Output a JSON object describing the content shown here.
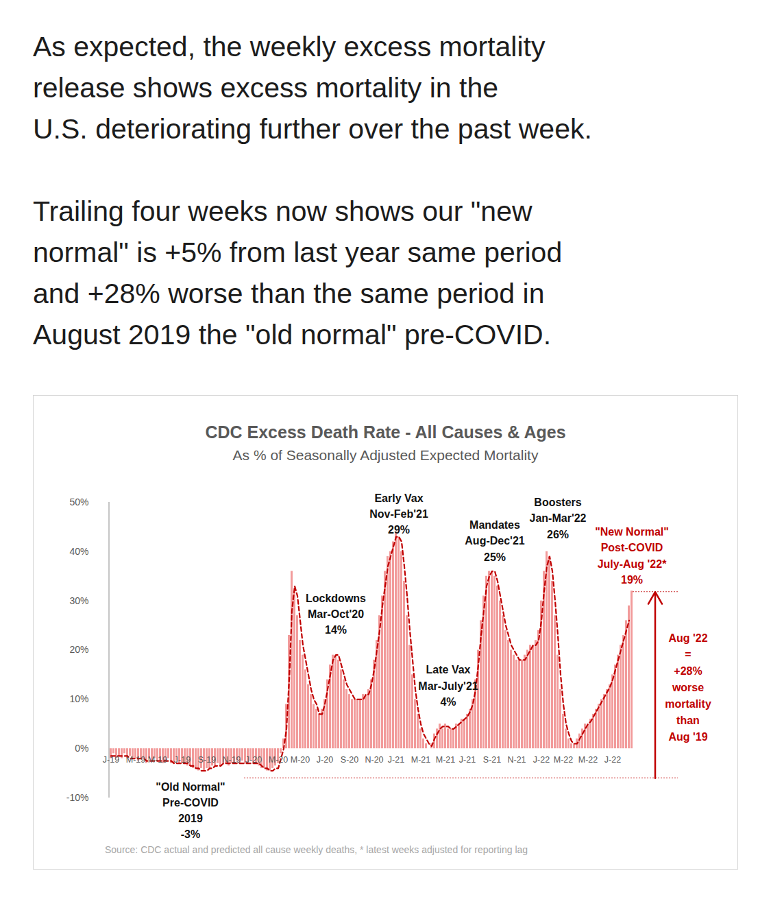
{
  "header": {
    "paragraphs": [
      [
        "As expected, the weekly excess mortality",
        "release shows excess mortality in the",
        "U.S. deteriorating further over the past week."
      ],
      [
        "Trailing four weeks now shows our \"new",
        "normal\" is +5% from last year same period",
        "and +28% worse than the same period in",
        "August 2019 the \"old normal\" pre-COVID."
      ]
    ]
  },
  "chart_data": {
    "type": "bar",
    "title": "CDC Excess Death Rate - All Causes & Ages",
    "subtitle": "As % of Seasonally Adjusted Expected Mortality",
    "source": "Source: CDC actual and predicted all cause weekly deaths, * latest weeks adjusted for reporting lag",
    "categories": [
      "J-19",
      null,
      null,
      null,
      null,
      null,
      null,
      null,
      null,
      "M-19",
      null,
      null,
      null,
      null,
      null,
      null,
      null,
      "M-19",
      null,
      null,
      null,
      null,
      null,
      null,
      null,
      null,
      "J-19",
      null,
      null,
      null,
      null,
      null,
      null,
      null,
      null,
      "S-19",
      null,
      null,
      null,
      null,
      null,
      null,
      null,
      null,
      "N-19",
      null,
      null,
      null,
      null,
      null,
      null,
      null,
      "J-20",
      null,
      null,
      null,
      null,
      null,
      null,
      null,
      null,
      "M-20",
      null,
      null,
      null,
      null,
      null,
      null,
      null,
      "M-20",
      null,
      null,
      null,
      null,
      null,
      null,
      null,
      null,
      "J-20",
      null,
      null,
      null,
      null,
      null,
      null,
      null,
      null,
      "S-20",
      null,
      null,
      null,
      null,
      null,
      null,
      null,
      null,
      "N-20",
      null,
      null,
      null,
      null,
      null,
      null,
      null,
      "J-21",
      null,
      null,
      null,
      null,
      null,
      null,
      null,
      null,
      "M-21",
      null,
      null,
      null,
      null,
      null,
      null,
      null,
      null,
      "M-21",
      null,
      null,
      null,
      null,
      null,
      null,
      null,
      "J-21",
      null,
      null,
      null,
      null,
      null,
      null,
      null,
      null,
      "S-21",
      null,
      null,
      null,
      null,
      null,
      null,
      null,
      null,
      "N-21",
      null,
      null,
      null,
      null,
      null,
      null,
      null,
      null,
      "J-22",
      null,
      null,
      null,
      null,
      null,
      null,
      null,
      "M-22",
      null,
      null,
      null,
      null,
      null,
      null,
      null,
      null,
      "M-22",
      null,
      null,
      null,
      null,
      null,
      null,
      null,
      null,
      "J-22",
      null,
      null,
      null,
      null,
      null,
      null,
      null
    ],
    "series": [
      {
        "type": "bar",
        "color": "#f29b9b",
        "values": [
          -2,
          -1,
          -2,
          -1.5,
          -2,
          -1,
          -2,
          -1.5,
          -2,
          -2,
          -2.5,
          -2,
          -2,
          -3,
          -2,
          -2.5,
          -2,
          -2.5,
          -2.5,
          -3,
          -2.5,
          -2,
          -3,
          -3,
          -2.5,
          -3,
          -3,
          -3,
          -3.5,
          -3.5,
          -4,
          -4,
          -4.5,
          -4,
          -4.5,
          -4,
          -4,
          -3.5,
          -3.5,
          -3,
          -3.5,
          -3,
          -3,
          -3.5,
          -3,
          -3,
          -2.5,
          -3,
          -2.5,
          -3,
          -3,
          -2.5,
          -3,
          -3,
          -3.5,
          -4,
          -4,
          -4.5,
          -4.5,
          -4,
          -3.5,
          -3,
          -1,
          2,
          9,
          23,
          36,
          32,
          27,
          22,
          19,
          16,
          13,
          11,
          9,
          8,
          7,
          8,
          10,
          14,
          17,
          19,
          19,
          18,
          16,
          14,
          12,
          11,
          10,
          10,
          10,
          10,
          11,
          11,
          12,
          14,
          18,
          22,
          27,
          31,
          36,
          39,
          40,
          42,
          44,
          43,
          40,
          34,
          27,
          21,
          15,
          10,
          7,
          4,
          2,
          1,
          0,
          1,
          3,
          4,
          5,
          4,
          5,
          4,
          4,
          4,
          5,
          5,
          6,
          6,
          7,
          8,
          10,
          14,
          20,
          26,
          31,
          35,
          36,
          36,
          35,
          33,
          30,
          27,
          24,
          22,
          20,
          19,
          18,
          18,
          18,
          19,
          20,
          21,
          21,
          22,
          24,
          30,
          36,
          40,
          39,
          34,
          27,
          19,
          12,
          7,
          4,
          2,
          1,
          1,
          2,
          3,
          4,
          5,
          5,
          6,
          7,
          8,
          9,
          10,
          11,
          12,
          13,
          15,
          17,
          19,
          21,
          23,
          26,
          29,
          32
        ]
      },
      {
        "type": "line",
        "line_style": "dashed",
        "color": "#c00000",
        "values": [
          -1.5,
          -1.5,
          -1.5,
          -1.5,
          -1.5,
          -1.5,
          -1.5,
          -2,
          -2,
          -2,
          -2,
          -2,
          -2,
          -2.5,
          -2.5,
          -2.5,
          -2.5,
          -2.5,
          -2.5,
          -2.5,
          -2.5,
          -2.5,
          -2.5,
          -3,
          -3,
          -3,
          -3,
          -3,
          -3,
          -3.5,
          -3.5,
          -4,
          -4,
          -4.5,
          -4.5,
          -4.5,
          -4,
          -4,
          -3.5,
          -3.5,
          -3.5,
          -3,
          -3,
          -3,
          -3,
          -3,
          -3,
          -3,
          -3,
          -3,
          -3,
          -3,
          -3,
          -3,
          -3,
          -3.5,
          -4,
          -4,
          -4.5,
          -4.5,
          -4,
          -4,
          -2,
          0,
          4,
          14,
          28,
          33,
          31,
          26,
          21,
          18,
          15,
          12,
          10,
          9,
          7,
          7,
          9,
          12,
          15,
          18,
          19,
          19,
          17,
          15,
          13,
          12,
          11,
          10,
          10,
          10,
          10,
          11,
          11,
          13,
          16,
          20,
          24,
          29,
          33,
          37,
          39,
          41,
          43,
          43,
          42,
          37,
          31,
          24,
          18,
          12,
          8,
          5,
          3,
          2,
          1,
          0.5,
          2,
          3,
          4,
          4.5,
          4.5,
          4.5,
          4,
          4,
          4.5,
          5,
          5.5,
          6,
          6.5,
          7.5,
          9,
          12,
          17,
          23,
          28,
          33,
          35,
          36,
          36,
          34,
          31,
          28,
          25,
          23,
          21,
          20,
          19,
          18,
          18,
          18,
          19,
          20,
          21,
          21,
          22,
          26,
          32,
          37,
          39,
          36,
          30,
          23,
          15,
          9,
          5,
          3,
          1.5,
          1,
          1,
          2,
          3,
          4,
          5,
          5.5,
          6.5,
          7.5,
          8.5,
          9.5,
          10.5,
          11.5,
          12.5,
          14,
          16,
          18,
          20,
          22,
          24,
          26,
          null
        ]
      }
    ],
    "ylim": [
      -10,
      50
    ],
    "yticks": [
      {
        "value": -10,
        "label": "-10%"
      },
      {
        "value": 0,
        "label": "0%"
      },
      {
        "value": 10,
        "label": "10%"
      },
      {
        "value": 20,
        "label": "20%"
      },
      {
        "value": 30,
        "label": "30%"
      },
      {
        "value": 40,
        "label": "40%"
      },
      {
        "value": 50,
        "label": "50%"
      }
    ],
    "grid": false,
    "annotations": [
      {
        "x": 82,
        "y": 32.1,
        "lines": [
          "Lockdowns",
          "Mar-Oct'20",
          "14%"
        ]
      },
      {
        "x": 105,
        "y": 52.4,
        "lines": [
          "Early Vax",
          "Nov-Feb'21",
          "29%"
        ]
      },
      {
        "x": 123,
        "y": 17.5,
        "lines": [
          "Late Vax",
          "Mar-July'21",
          "4%"
        ]
      },
      {
        "x": 140,
        "y": 46.9,
        "lines": [
          "Mandates",
          "Aug-Dec'21",
          "25%"
        ]
      },
      {
        "x": 163,
        "y": 51.5,
        "lines": [
          "Boosters",
          "Jan-Mar'22",
          "26%"
        ]
      },
      {
        "x": 190,
        "y": 45.5,
        "lines": [
          "\"New Normal\"",
          "Post-COVID",
          "July-Aug '22*",
          "19%"
        ],
        "color": "#c00000"
      },
      {
        "x": 29,
        "y": -6.2,
        "lines": [
          "\"Old Normal\"",
          "Pre-COVID",
          "2019",
          "-3%"
        ]
      }
    ],
    "bracket": {
      "from": -6,
      "to": 31.8,
      "x_from": 49,
      "text_y": 24,
      "color": "#c00000",
      "lines": [
        "Aug '22",
        "=",
        "+28%",
        "worse",
        "mortality",
        "than",
        "Aug '19"
      ]
    }
  }
}
